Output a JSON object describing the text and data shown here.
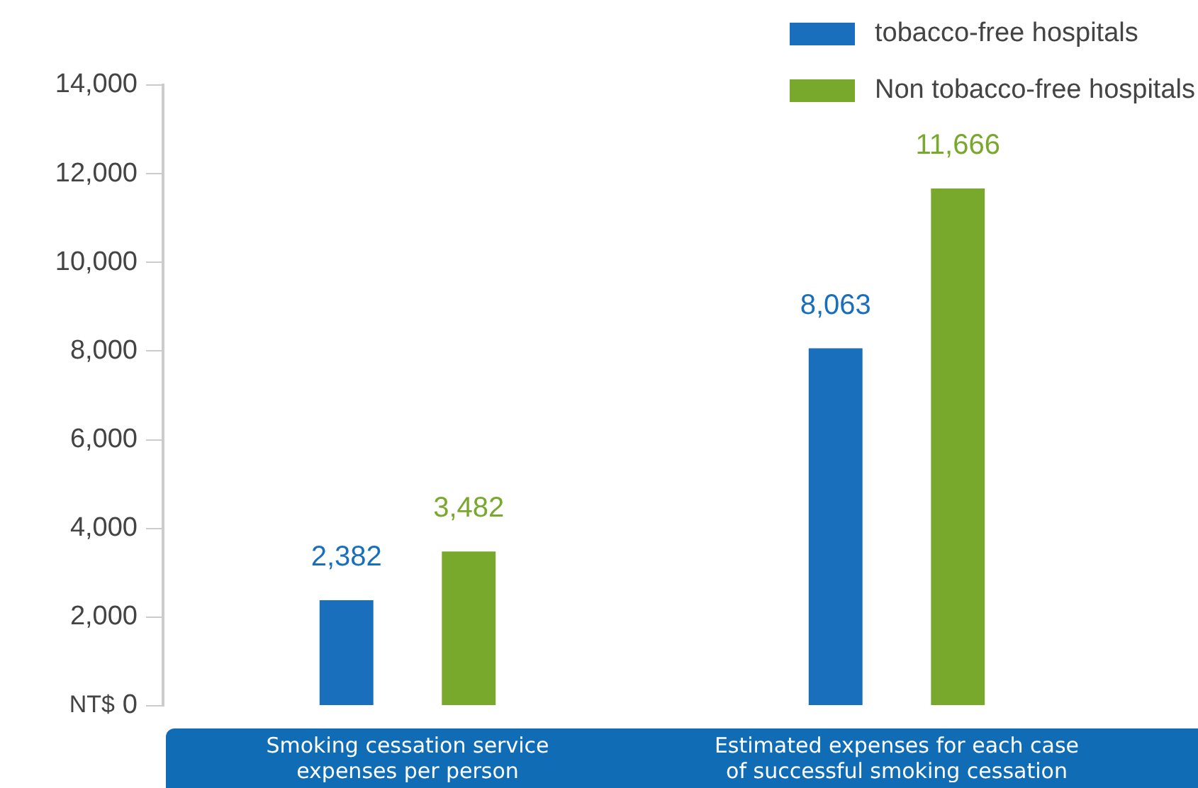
{
  "chart_data": {
    "type": "bar",
    "ylabel": "NT$",
    "categories": [
      "Smoking cessation service\nexpenses per person",
      "Estimated expenses for each case\nof successful smoking cessation"
    ],
    "series": [
      {
        "name": "tobacco-free hospitals",
        "color": "#1a6fbd",
        "values": [
          2382,
          8063
        ]
      },
      {
        "name": "Non tobacco-free hospitals",
        "color": "#78a82c",
        "values": [
          3482,
          11666
        ]
      }
    ],
    "value_labels": [
      [
        "2,382",
        "8,063"
      ],
      [
        "3,482",
        "11,666"
      ]
    ],
    "ylim": [
      0,
      14000
    ],
    "yticks": [
      {
        "value": 0,
        "label": "0"
      },
      {
        "value": 2000,
        "label": "2,000"
      },
      {
        "value": 4000,
        "label": "4,000"
      },
      {
        "value": 6000,
        "label": "6,000"
      },
      {
        "value": 8000,
        "label": "8,000"
      },
      {
        "value": 10000,
        "label": "10,000"
      },
      {
        "value": 12000,
        "label": "12,000"
      },
      {
        "value": 14000,
        "label": "14,000"
      }
    ],
    "grid": false,
    "legend": "top right"
  }
}
